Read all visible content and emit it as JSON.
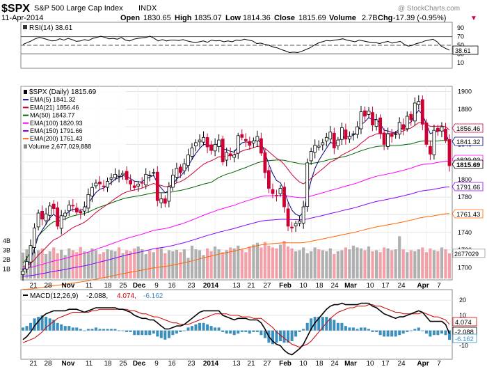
{
  "header": {
    "symbol": "$SPX",
    "name": "S&P 500 Large Cap Index",
    "exchange": "INDX",
    "date": "11-Apr-2014",
    "open_label": "Open",
    "open": "1830.65",
    "high_label": "High",
    "high": "1835.07",
    "low_label": "Low",
    "low": "1814.36",
    "close_label": "Close",
    "close": "1815.69",
    "volume_label": "Volume",
    "volume": "2.7B",
    "chg_label": "Chg",
    "chg": "-17.39 (-0.95%)",
    "chg_arrow": "▼",
    "watermark": "@ StockCharts.com"
  },
  "colors": {
    "up": "#000000",
    "down": "#cc0033",
    "ema5": "#000080",
    "ema21": "#cc0033",
    "ma50": "#006400",
    "ema100": "#ff00ff",
    "ema150": "#8800ff",
    "ema200": "#ff6600",
    "volume_up": "#b0b0b0",
    "volume_down": "#f4a0a8",
    "macd_line": "#000000",
    "signal_line": "#cc0000",
    "histogram": "#3a8fbf"
  },
  "chart_data": [
    {
      "type": "line",
      "panel": "rsi",
      "title": "RSI(14) 38.61",
      "y_ticks": [
        "90",
        "70",
        "50",
        "30",
        "10"
      ],
      "levels": [
        70,
        50,
        30
      ],
      "ylim": [
        0,
        100
      ],
      "series": [
        {
          "name": "RSI(14)",
          "last": "38.61",
          "values": [
            52,
            56,
            60,
            65,
            68,
            66,
            63,
            60,
            61,
            65,
            62,
            66,
            63,
            59,
            60,
            63,
            61,
            66,
            68,
            71,
            68,
            65,
            66,
            64,
            68,
            62,
            60,
            64,
            66,
            67,
            68,
            71,
            66,
            60,
            63,
            60,
            62,
            62,
            61,
            63,
            60,
            58,
            56,
            58,
            60,
            57,
            62,
            60,
            61,
            58,
            60,
            58,
            62,
            61,
            64,
            62,
            60,
            54,
            55,
            52,
            50,
            46,
            44,
            40,
            37,
            33,
            34,
            33,
            36,
            40,
            44,
            50,
            55,
            58,
            61,
            60,
            62,
            63,
            65,
            62,
            60,
            58,
            62,
            60,
            58,
            56,
            56,
            54,
            57,
            59,
            55,
            57,
            59,
            52,
            48,
            50,
            54,
            56,
            60,
            62,
            64,
            58,
            48,
            43,
            38.61
          ]
        }
      ]
    },
    {
      "type": "candlestick",
      "panel": "price",
      "title": "$SPX (Daily) 1815.69",
      "y_ticks": [
        "1900",
        "1880",
        "1860",
        "1840",
        "1820",
        "1800",
        "1780",
        "1760",
        "1740",
        "1720",
        "1700"
      ],
      "ylim": [
        1686,
        1906
      ],
      "x_tick_labels": [
        "21",
        "28",
        "Nov",
        "11",
        "18",
        "25",
        "Dec",
        "9",
        "16",
        "23",
        "2014",
        "13",
        "21",
        "27",
        "Feb",
        "10",
        "18",
        "24",
        "Mar",
        "10",
        "17",
        "24",
        "Apr",
        "7"
      ],
      "legend": [
        {
          "name": "$SPX (Daily) 1815.69",
          "color": "#000000"
        },
        {
          "name": "EMA(5) 1841.32",
          "color": "#000080"
        },
        {
          "name": "EMA(21) 1856.46",
          "color": "#cc0033"
        },
        {
          "name": "MA(50) 1843.77",
          "color": "#006400"
        },
        {
          "name": "EMA(100) 1820.93",
          "color": "#ff00ff"
        },
        {
          "name": "EMA(150) 1791.66",
          "color": "#8800ff"
        },
        {
          "name": "EMA(200) 1761.43",
          "color": "#ff6600"
        },
        {
          "name": "Volume 2,677,029,888",
          "color": "#888888"
        }
      ],
      "right_labels": [
        {
          "value": 1856.46,
          "text": "1856.46",
          "color": "#cc0033"
        },
        {
          "value": 1841.32,
          "text": "1841.32",
          "color": "#000080"
        },
        {
          "value": 1820.93,
          "text": "1820.93",
          "color": "#ff00ff"
        },
        {
          "value": 1815.69,
          "text": "1815.69",
          "color": "#000000",
          "bold": true
        },
        {
          "value": 1791.66,
          "text": "1791.66",
          "color": "#8800ff"
        },
        {
          "value": 1761.43,
          "text": "1761.43",
          "color": "#ff6600"
        }
      ],
      "volume_axis": {
        "ticks": [
          "4B",
          "3B",
          "2B",
          "1B"
        ],
        "last_label": "2677029"
      },
      "closes": [
        1696,
        1707,
        1725,
        1745,
        1762,
        1755,
        1761,
        1770,
        1767,
        1747,
        1759,
        1762,
        1771,
        1770,
        1763,
        1762,
        1769,
        1783,
        1791,
        1796,
        1795,
        1792,
        1798,
        1802,
        1806,
        1805,
        1807,
        1800,
        1795,
        1791,
        1795,
        1796,
        1806,
        1805,
        1808,
        1776,
        1778,
        1773,
        1792,
        1805,
        1813,
        1808,
        1818,
        1828,
        1836,
        1842,
        1845,
        1848,
        1837,
        1833,
        1840,
        1845,
        1820,
        1831,
        1827,
        1828,
        1850,
        1848,
        1844,
        1839,
        1844,
        1849,
        1830,
        1808,
        1790,
        1784,
        1782,
        1790,
        1769,
        1747,
        1745,
        1750,
        1753,
        1769,
        1819,
        1832,
        1839,
        1838,
        1842,
        1848,
        1854,
        1836,
        1845,
        1859,
        1846,
        1849,
        1852,
        1860,
        1877,
        1872,
        1878,
        1862,
        1868,
        1852,
        1840,
        1852,
        1849,
        1852,
        1865,
        1857,
        1872,
        1868,
        1887,
        1889,
        1863,
        1840,
        1829,
        1856,
        1855,
        1860,
        1845,
        1815.69
      ],
      "volume_b": [
        2.75,
        3.1,
        3.05,
        2.85,
        3.0,
        3.2,
        2.6,
        2.9,
        3.3,
        2.7,
        3.05,
        2.5,
        3.2,
        3.0,
        2.8,
        3.35,
        2.9,
        2.8,
        3.2,
        3.0,
        2.6,
        2.8,
        3.1,
        3.0,
        2.9,
        3.3,
        2.7,
        3.0,
        2.9,
        3.2,
        3.4,
        3.1,
        2.6,
        3.0,
        2.8,
        3.3,
        3.2,
        2.7,
        3.0,
        2.9,
        3.05,
        2.8,
        3.1,
        2.2,
        3.5,
        3.1,
        3.0,
        2.5,
        3.2,
        2.9,
        3.4,
        3.1,
        2.8,
        3.0,
        3.3,
        3.2,
        3.5,
        3.1,
        2.8,
        3.4,
        3.6,
        3.8,
        3.3,
        3.9,
        3.5,
        3.3,
        3.2,
        3.6,
        4.0,
        3.4,
        3.2,
        2.9,
        3.0,
        3.3,
        2.7,
        2.9,
        3.3,
        3.1,
        3.0,
        2.9,
        3.2,
        2.6,
        2.9,
        3.0,
        3.3,
        3.1,
        3.5,
        3.3,
        3.2,
        3.0,
        3.4,
        2.9,
        3.0,
        2.8,
        3.3,
        3.2,
        3.0,
        3.1,
        4.5,
        3.1,
        2.8,
        3.0,
        2.9,
        3.1,
        3.3,
        2.8,
        3.2,
        3.0,
        2.9,
        3.3,
        3.1,
        2.68
      ]
    },
    {
      "type": "line",
      "panel": "macd",
      "title": "MACD(12,26,9) -2.088, 4.074, -6.162",
      "title_parts": {
        "label": "MACD(12,26,9)",
        "macd": "-2.088,",
        "signal": "4.074,",
        "hist": "-6.162"
      },
      "y_ticks": [
        "20",
        "10",
        "0",
        "-10"
      ],
      "ylim": [
        -18,
        26
      ],
      "right_labels": [
        {
          "value": 4.074,
          "text": "4.074",
          "color": "#cc0000"
        },
        {
          "value": -2.088,
          "text": "-2.088",
          "color": "#000000"
        },
        {
          "value": -6.162,
          "text": "-6.162",
          "color": "#3a8fbf"
        }
      ],
      "x_tick_labels": [
        "21",
        "28",
        "Nov",
        "11",
        "18",
        "25",
        "Dec",
        "9",
        "16",
        "23",
        "2014",
        "13",
        "21",
        "27",
        "Feb",
        "10",
        "18",
        "24",
        "Mar",
        "10",
        "17",
        "24",
        "Apr",
        "7"
      ],
      "series": [
        {
          "name": "MACD",
          "values": [
            -6,
            -4,
            -1,
            3,
            6,
            9,
            11,
            12,
            13,
            13,
            13,
            13,
            14,
            14,
            14,
            13,
            12,
            13,
            14,
            15,
            15,
            15,
            15,
            15,
            15,
            14,
            14,
            13,
            12,
            10,
            9,
            8,
            8,
            7,
            7,
            5,
            3,
            1,
            1,
            2,
            3,
            3,
            4,
            6,
            8,
            10,
            12,
            13,
            13,
            13,
            13,
            13,
            10,
            9,
            8,
            7,
            8,
            8,
            8,
            7,
            7,
            7,
            5,
            1,
            -4,
            -7,
            -9,
            -10,
            -13,
            -15,
            -16,
            -14,
            -12,
            -9,
            -4,
            1,
            5,
            8,
            11,
            14,
            16,
            17,
            17,
            18,
            17,
            17,
            17,
            17,
            18,
            18,
            18,
            16,
            15,
            13,
            11,
            10,
            9,
            8,
            9,
            9,
            10,
            11,
            12,
            13,
            12,
            9,
            6,
            6,
            6,
            6,
            4,
            -2.088
          ]
        },
        {
          "name": "Signal",
          "values": [
            -8,
            -7,
            -6,
            -5,
            -3,
            -1,
            2,
            4,
            6,
            8,
            9,
            10,
            11,
            12,
            12,
            12,
            12,
            12,
            13,
            13,
            14,
            14,
            14,
            14,
            14,
            14,
            14,
            14,
            13,
            13,
            12,
            11,
            11,
            10,
            9,
            9,
            8,
            7,
            6,
            5,
            5,
            4,
            4,
            4,
            5,
            6,
            7,
            8,
            9,
            10,
            11,
            11,
            11,
            11,
            10,
            10,
            10,
            9,
            9,
            9,
            8,
            8,
            8,
            6,
            4,
            2,
            -1,
            -3,
            -5,
            -7,
            -9,
            -10,
            -11,
            -10,
            -9,
            -7,
            -4,
            -1,
            2,
            5,
            8,
            10,
            12,
            13,
            14,
            15,
            15,
            16,
            16,
            16,
            17,
            17,
            16,
            16,
            15,
            14,
            13,
            12,
            12,
            11,
            11,
            11,
            11,
            11,
            12,
            11,
            10,
            9,
            9,
            8,
            7,
            4.074
          ]
        }
      ]
    }
  ]
}
